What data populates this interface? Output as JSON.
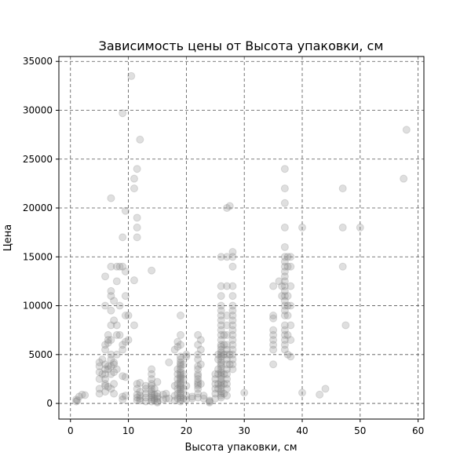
{
  "chart_data": {
    "type": "scatter",
    "title": "Зависимость цены от Высота упаковки, см",
    "xlabel": "Высота упаковки, см",
    "ylabel": "Цена",
    "xlim": [
      -2,
      61
    ],
    "ylim": [
      -1600,
      35500
    ],
    "xticks": [
      0,
      10,
      20,
      30,
      40,
      50,
      60
    ],
    "yticks": [
      0,
      5000,
      10000,
      15000,
      20000,
      25000,
      30000,
      35000
    ],
    "grid": true,
    "marker_color": "#808080",
    "marker_opacity": 0.25,
    "points": [
      [
        1,
        200
      ],
      [
        1,
        400
      ],
      [
        1.2,
        300
      ],
      [
        1.5,
        700
      ],
      [
        2,
        900
      ],
      [
        2.5,
        850
      ],
      [
        5,
        4200
      ],
      [
        5,
        3800
      ],
      [
        5,
        3200
      ],
      [
        5,
        2500
      ],
      [
        5,
        1500
      ],
      [
        5,
        1000
      ],
      [
        5.5,
        4500
      ],
      [
        5.5,
        3000
      ],
      [
        6,
        13000
      ],
      [
        6,
        10000
      ],
      [
        6,
        6000
      ],
      [
        6,
        5500
      ],
      [
        6,
        4000
      ],
      [
        6,
        3500
      ],
      [
        6,
        3000
      ],
      [
        6,
        2500
      ],
      [
        6,
        2000
      ],
      [
        6,
        1800
      ],
      [
        6,
        1200
      ],
      [
        6.5,
        7000
      ],
      [
        6.5,
        6500
      ],
      [
        6.5,
        6200
      ],
      [
        6.5,
        3800
      ],
      [
        6.5,
        3500
      ],
      [
        6.5,
        1700
      ],
      [
        7,
        21000
      ],
      [
        7,
        14000
      ],
      [
        7,
        11500
      ],
      [
        7,
        11000
      ],
      [
        7,
        9500
      ],
      [
        7,
        8000
      ],
      [
        7,
        6500
      ],
      [
        7,
        5000
      ],
      [
        7,
        4500
      ],
      [
        7,
        3800
      ],
      [
        7,
        3000
      ],
      [
        7,
        1500
      ],
      [
        7.5,
        10500
      ],
      [
        7.5,
        8500
      ],
      [
        7.5,
        4200
      ],
      [
        7.5,
        4000
      ],
      [
        7.5,
        3200
      ],
      [
        7.5,
        2000
      ],
      [
        7.5,
        1000
      ],
      [
        8,
        14000
      ],
      [
        8,
        12500
      ],
      [
        8,
        8000
      ],
      [
        8,
        7000
      ],
      [
        8,
        5000
      ],
      [
        8,
        3500
      ],
      [
        8.5,
        14000
      ],
      [
        8.5,
        10000
      ],
      [
        8.5,
        7000
      ],
      [
        9,
        29700
      ],
      [
        9,
        17000
      ],
      [
        9,
        14000
      ],
      [
        9,
        6000
      ],
      [
        9,
        5500
      ],
      [
        9,
        2800
      ],
      [
        9,
        700
      ],
      [
        9,
        400
      ],
      [
        9.5,
        19700
      ],
      [
        9.5,
        13500
      ],
      [
        9.5,
        11000
      ],
      [
        9.5,
        9000
      ],
      [
        9.5,
        6300
      ],
      [
        9.5,
        2700
      ],
      [
        9.5,
        800
      ],
      [
        10,
        6500
      ],
      [
        10,
        9000
      ],
      [
        10.5,
        33500
      ],
      [
        11,
        23000
      ],
      [
        11,
        22000
      ],
      [
        11,
        12600
      ],
      [
        11,
        8000
      ],
      [
        11.5,
        24000
      ],
      [
        11.5,
        19000
      ],
      [
        11.5,
        18000
      ],
      [
        11.5,
        17000
      ],
      [
        11.5,
        2000
      ],
      [
        11.5,
        1500
      ],
      [
        11.5,
        900
      ],
      [
        11.5,
        600
      ],
      [
        11.5,
        300
      ],
      [
        12,
        27000
      ],
      [
        12,
        2100
      ],
      [
        12,
        1200
      ],
      [
        12,
        800
      ],
      [
        12,
        500
      ],
      [
        12,
        300
      ],
      [
        13,
        1800
      ],
      [
        13,
        1500
      ],
      [
        13,
        1000
      ],
      [
        13,
        600
      ],
      [
        13,
        200
      ],
      [
        14,
        13600
      ],
      [
        14,
        3500
      ],
      [
        14,
        3000
      ],
      [
        14,
        2500
      ],
      [
        14,
        2000
      ],
      [
        14,
        1800
      ],
      [
        14,
        1500
      ],
      [
        14,
        1200
      ],
      [
        14,
        1000
      ],
      [
        14,
        800
      ],
      [
        14,
        600
      ],
      [
        14,
        400
      ],
      [
        14,
        200
      ],
      [
        14.5,
        1500
      ],
      [
        14.5,
        900
      ],
      [
        14.5,
        500
      ],
      [
        14.5,
        300
      ],
      [
        15,
        2200
      ],
      [
        15,
        1000
      ],
      [
        15,
        700
      ],
      [
        15,
        500
      ],
      [
        15,
        200
      ],
      [
        15,
        100
      ],
      [
        16,
        900
      ],
      [
        16,
        400
      ],
      [
        16.5,
        1000
      ],
      [
        16.5,
        500
      ],
      [
        17,
        4200
      ],
      [
        17,
        500
      ],
      [
        18,
        5500
      ],
      [
        18,
        1800
      ],
      [
        18,
        800
      ],
      [
        18,
        300
      ],
      [
        18.5,
        6300
      ],
      [
        18.5,
        5800
      ],
      [
        18.5,
        3500
      ],
      [
        18.5,
        3000
      ],
      [
        18.5,
        2500
      ],
      [
        18.5,
        2000
      ],
      [
        18.5,
        1500
      ],
      [
        18.5,
        1000
      ],
      [
        18.5,
        500
      ],
      [
        19,
        9000
      ],
      [
        19,
        7000
      ],
      [
        19,
        6000
      ],
      [
        19,
        4800
      ],
      [
        19,
        4500
      ],
      [
        19,
        4200
      ],
      [
        19,
        4000
      ],
      [
        19,
        3800
      ],
      [
        19,
        3500
      ],
      [
        19,
        3200
      ],
      [
        19,
        3000
      ],
      [
        19,
        2800
      ],
      [
        19,
        2600
      ],
      [
        19,
        2400
      ],
      [
        19,
        2200
      ],
      [
        19,
        2000
      ],
      [
        19,
        1800
      ],
      [
        19,
        1600
      ],
      [
        19,
        1400
      ],
      [
        19,
        1200
      ],
      [
        19,
        1000
      ],
      [
        19,
        800
      ],
      [
        19,
        600
      ],
      [
        19,
        400
      ],
      [
        19,
        200
      ],
      [
        19.5,
        4000
      ],
      [
        19.5,
        3000
      ],
      [
        19.5,
        2500
      ],
      [
        19.5,
        1500
      ],
      [
        19.5,
        500
      ],
      [
        20,
        5000
      ],
      [
        20,
        4800
      ],
      [
        20,
        1800
      ],
      [
        20,
        800
      ],
      [
        20,
        400
      ],
      [
        21,
        700
      ],
      [
        21,
        500
      ],
      [
        22,
        7000
      ],
      [
        22,
        6000
      ],
      [
        22,
        5000
      ],
      [
        22,
        4500
      ],
      [
        22,
        3800
      ],
      [
        22,
        3500
      ],
      [
        22,
        3000
      ],
      [
        22,
        2800
      ],
      [
        22,
        2500
      ],
      [
        22,
        2200
      ],
      [
        22,
        2000
      ],
      [
        22,
        1800
      ],
      [
        22,
        1500
      ],
      [
        22,
        1000
      ],
      [
        22,
        600
      ],
      [
        22.5,
        6500
      ],
      [
        22.5,
        5500
      ],
      [
        22.5,
        4000
      ],
      [
        22.5,
        2000
      ],
      [
        23,
        800
      ],
      [
        23,
        500
      ],
      [
        24,
        300
      ],
      [
        24,
        200
      ],
      [
        24,
        100
      ],
      [
        25,
        3000
      ],
      [
        25,
        2500
      ],
      [
        25,
        2000
      ],
      [
        25,
        1500
      ],
      [
        25,
        1000
      ],
      [
        25,
        500
      ],
      [
        25.5,
        5000
      ],
      [
        25.5,
        4500
      ],
      [
        25.5,
        3500
      ],
      [
        25.5,
        3000
      ],
      [
        25.5,
        2000
      ],
      [
        25.5,
        1500
      ],
      [
        26,
        15000
      ],
      [
        26,
        12000
      ],
      [
        26,
        11000
      ],
      [
        26,
        10000
      ],
      [
        26,
        9500
      ],
      [
        26,
        9000
      ],
      [
        26,
        8500
      ],
      [
        26,
        8000
      ],
      [
        26,
        7500
      ],
      [
        26,
        7000
      ],
      [
        26,
        6500
      ],
      [
        26,
        6000
      ],
      [
        26,
        5800
      ],
      [
        26,
        5500
      ],
      [
        26,
        5200
      ],
      [
        26,
        5000
      ],
      [
        26,
        4800
      ],
      [
        26,
        4500
      ],
      [
        26,
        4200
      ],
      [
        26,
        4000
      ],
      [
        26,
        3800
      ],
      [
        26,
        3500
      ],
      [
        26,
        3200
      ],
      [
        26,
        3000
      ],
      [
        26,
        2800
      ],
      [
        26,
        2500
      ],
      [
        26,
        2200
      ],
      [
        26,
        2000
      ],
      [
        26,
        1800
      ],
      [
        26,
        1500
      ],
      [
        26,
        1200
      ],
      [
        26,
        1000
      ],
      [
        26,
        800
      ],
      [
        26,
        600
      ],
      [
        26.5,
        7000
      ],
      [
        26.5,
        6000
      ],
      [
        26.5,
        5000
      ],
      [
        26.5,
        3000
      ],
      [
        26.5,
        2000
      ],
      [
        26.5,
        1000
      ],
      [
        27,
        20000
      ],
      [
        27,
        15000
      ],
      [
        27,
        12000
      ],
      [
        27,
        9000
      ],
      [
        27,
        8000
      ],
      [
        27,
        7000
      ],
      [
        27,
        6000
      ],
      [
        27,
        5500
      ],
      [
        27,
        5000
      ],
      [
        27,
        4500
      ],
      [
        27,
        4000
      ],
      [
        27,
        3500
      ],
      [
        27,
        3000
      ],
      [
        27,
        2500
      ],
      [
        27,
        2000
      ],
      [
        27,
        1500
      ],
      [
        27,
        800
      ],
      [
        27.5,
        20200
      ],
      [
        27.5,
        5000
      ],
      [
        27.5,
        4000
      ],
      [
        28,
        15500
      ],
      [
        28,
        15000
      ],
      [
        28,
        14000
      ],
      [
        28,
        12000
      ],
      [
        28,
        11000
      ],
      [
        28,
        10000
      ],
      [
        28,
        9500
      ],
      [
        28,
        9000
      ],
      [
        28,
        8500
      ],
      [
        28,
        8000
      ],
      [
        28,
        7500
      ],
      [
        28,
        7000
      ],
      [
        28,
        6500
      ],
      [
        28,
        6000
      ],
      [
        28,
        5500
      ],
      [
        28,
        5000
      ],
      [
        28,
        4500
      ],
      [
        28,
        4000
      ],
      [
        28,
        3500
      ],
      [
        30,
        1100
      ],
      [
        35,
        12000
      ],
      [
        35,
        9000
      ],
      [
        35,
        8700
      ],
      [
        35,
        7500
      ],
      [
        35,
        7000
      ],
      [
        35,
        6500
      ],
      [
        35,
        6000
      ],
      [
        35,
        5500
      ],
      [
        35,
        4000
      ],
      [
        36,
        12500
      ],
      [
        36.5,
        12000
      ],
      [
        36.5,
        11000
      ],
      [
        37,
        24000
      ],
      [
        37,
        22000
      ],
      [
        37,
        20500
      ],
      [
        37,
        18000
      ],
      [
        37,
        16000
      ],
      [
        37,
        15000
      ],
      [
        37,
        14500
      ],
      [
        37,
        14000
      ],
      [
        37,
        13500
      ],
      [
        37,
        13000
      ],
      [
        37,
        12500
      ],
      [
        37,
        12000
      ],
      [
        37,
        11500
      ],
      [
        37,
        11000
      ],
      [
        37,
        10500
      ],
      [
        37,
        10000
      ],
      [
        37,
        9500
      ],
      [
        37,
        9000
      ],
      [
        37,
        8000
      ],
      [
        37,
        7500
      ],
      [
        37,
        7000
      ],
      [
        37,
        6500
      ],
      [
        37,
        6000
      ],
      [
        37,
        5500
      ],
      [
        37.5,
        15000
      ],
      [
        37.5,
        14000
      ],
      [
        37.5,
        11000
      ],
      [
        37.5,
        10000
      ],
      [
        37.5,
        9000
      ],
      [
        37.5,
        7000
      ],
      [
        37.5,
        5000
      ],
      [
        38,
        15000
      ],
      [
        38,
        14000
      ],
      [
        38,
        12000
      ],
      [
        38,
        10000
      ],
      [
        38,
        8000
      ],
      [
        38,
        6500
      ],
      [
        38,
        4800
      ],
      [
        40,
        18000
      ],
      [
        40,
        1100
      ],
      [
        43,
        900
      ],
      [
        44,
        1500
      ],
      [
        47,
        22000
      ],
      [
        47,
        18000
      ],
      [
        47,
        14000
      ],
      [
        47.5,
        8000
      ],
      [
        50,
        18000
      ],
      [
        57.5,
        23000
      ],
      [
        58,
        28000
      ]
    ]
  }
}
